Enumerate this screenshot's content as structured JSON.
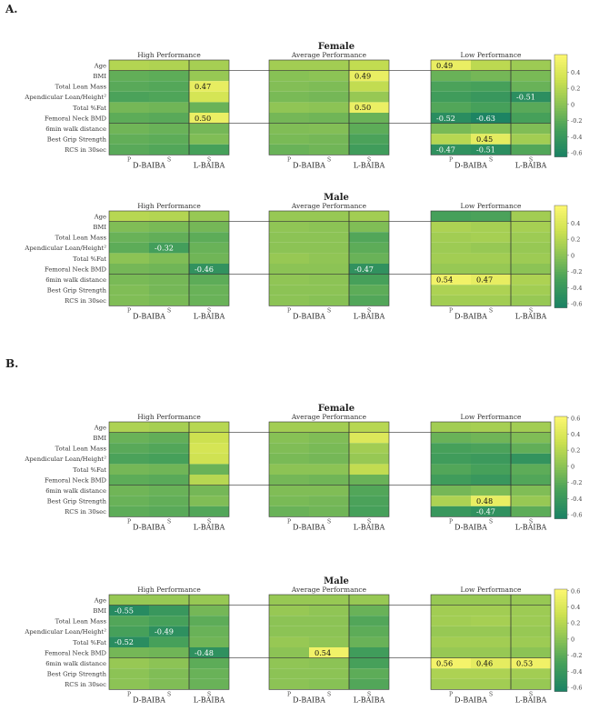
{
  "chart_data": {
    "type": "heatmap",
    "section_labels": [
      "A.",
      "B."
    ],
    "group_labels": [
      "High Performance",
      "Average Performance",
      "Low Performance"
    ],
    "row_labels": [
      "Age",
      "BMI",
      "Total Lean Mass",
      "Apendicular Lean/Height²",
      "Total %Fat",
      "Femoral Neck BMD",
      "6min walk distance",
      "Best Grip Strength",
      "RCS in 30sec"
    ],
    "column_labels": [
      "P",
      "S",
      "S",
      "P",
      "S",
      "S",
      "P",
      "S",
      "S"
    ],
    "column_group_labels": [
      "D-BAIBA",
      "L-BAIBA",
      "D-BAIBA",
      "L-BAIBA",
      "D-BAIBA",
      "L-BAIBA"
    ],
    "colorbar": {
      "min": -0.6,
      "max": 0.6,
      "ticks": [
        "0.4",
        "0.2",
        "0",
        "-0.2",
        "-0.4",
        "-0.6"
      ]
    },
    "panels": [
      {
        "section": "A.",
        "title": "Female",
        "colorbar_ticks": [
          "0.4",
          "0.2",
          "0",
          "-0.2",
          "-0.4",
          "-0.6"
        ],
        "values": [
          [
            0.18,
            0.16,
            0.12,
            0.1,
            0.1,
            0.25,
            0.49,
            0.22,
            0.08
          ],
          [
            -0.18,
            -0.2,
            0.05,
            -0.02,
            0.0,
            0.49,
            -0.15,
            -0.1,
            -0.08
          ],
          [
            -0.22,
            -0.24,
            0.47,
            -0.04,
            -0.06,
            0.25,
            -0.28,
            -0.3,
            -0.15
          ],
          [
            -0.28,
            -0.26,
            0.35,
            -0.08,
            -0.1,
            0.05,
            -0.35,
            -0.4,
            -0.51
          ],
          [
            -0.1,
            -0.12,
            -0.15,
            0.02,
            0.0,
            0.5,
            -0.25,
            -0.3,
            -0.22
          ],
          [
            -0.2,
            -0.22,
            0.5,
            -0.1,
            -0.12,
            -0.15,
            -0.52,
            -0.63,
            -0.3
          ],
          [
            -0.12,
            -0.15,
            -0.1,
            -0.05,
            -0.04,
            -0.2,
            -0.08,
            -0.02,
            -0.05
          ],
          [
            -0.18,
            -0.2,
            -0.05,
            -0.08,
            -0.1,
            -0.28,
            0.2,
            0.45,
            0.1
          ],
          [
            -0.22,
            -0.25,
            -0.3,
            -0.15,
            -0.12,
            -0.35,
            -0.47,
            -0.51,
            -0.25
          ]
        ],
        "labels": [
          [
            null,
            null,
            null,
            null,
            null,
            null,
            "0.49",
            null,
            null
          ],
          [
            null,
            null,
            null,
            null,
            null,
            "0.49",
            null,
            null,
            null
          ],
          [
            null,
            null,
            "0.47",
            null,
            null,
            null,
            null,
            null,
            null
          ],
          [
            null,
            null,
            null,
            null,
            null,
            null,
            null,
            null,
            "-0.51"
          ],
          [
            null,
            null,
            null,
            null,
            null,
            "0.50",
            null,
            null,
            null
          ],
          [
            null,
            null,
            "0.50",
            null,
            null,
            null,
            "-0.52",
            "-0.63",
            null
          ],
          [
            null,
            null,
            null,
            null,
            null,
            null,
            null,
            null,
            null
          ],
          [
            null,
            null,
            null,
            null,
            null,
            null,
            null,
            "0.45",
            null
          ],
          [
            null,
            null,
            null,
            null,
            null,
            null,
            "-0.47",
            "-0.51",
            null
          ]
        ]
      },
      {
        "section": "A.",
        "title": "Male",
        "colorbar_ticks": [
          "0.4",
          "0.2",
          "0",
          "-0.2",
          "-0.4",
          "-0.6"
        ],
        "values": [
          [
            0.2,
            0.18,
            0.05,
            0.05,
            0.05,
            0.1,
            -0.3,
            -0.28,
            0.1
          ],
          [
            -0.05,
            -0.08,
            -0.1,
            0.02,
            0.0,
            -0.05,
            0.15,
            0.12,
            0.12
          ],
          [
            -0.15,
            -0.18,
            -0.2,
            0.0,
            0.0,
            -0.25,
            0.1,
            0.12,
            0.08
          ],
          [
            -0.2,
            -0.32,
            -0.15,
            0.0,
            0.0,
            -0.2,
            0.08,
            0.05,
            0.05
          ],
          [
            0.0,
            -0.05,
            -0.12,
            0.05,
            0.02,
            -0.15,
            0.1,
            0.1,
            0.08
          ],
          [
            -0.1,
            -0.12,
            -0.46,
            0.0,
            0.0,
            -0.47,
            0.05,
            0.05,
            0.0
          ],
          [
            -0.08,
            -0.1,
            -0.2,
            0.02,
            0.0,
            -0.3,
            0.54,
            0.47,
            0.15
          ],
          [
            -0.05,
            -0.1,
            -0.15,
            0.0,
            0.0,
            -0.2,
            0.15,
            0.15,
            0.1
          ],
          [
            -0.05,
            -0.08,
            -0.15,
            0.0,
            -0.02,
            -0.25,
            0.1,
            0.1,
            0.05
          ]
        ],
        "labels": [
          [
            null,
            null,
            null,
            null,
            null,
            null,
            null,
            null,
            null
          ],
          [
            null,
            null,
            null,
            null,
            null,
            null,
            null,
            null,
            null
          ],
          [
            null,
            null,
            null,
            null,
            null,
            null,
            null,
            null,
            null
          ],
          [
            null,
            "-0.32",
            null,
            null,
            null,
            null,
            null,
            null,
            null
          ],
          [
            null,
            null,
            null,
            null,
            null,
            null,
            null,
            null,
            null
          ],
          [
            null,
            null,
            "-0.46",
            null,
            null,
            "-0.47",
            null,
            null,
            null
          ],
          [
            null,
            null,
            null,
            null,
            null,
            null,
            "0.54",
            "0.47",
            null
          ],
          [
            null,
            null,
            null,
            null,
            null,
            null,
            null,
            null,
            null
          ],
          [
            null,
            null,
            null,
            null,
            null,
            null,
            null,
            null,
            null
          ]
        ]
      },
      {
        "section": "B.",
        "title": "Female",
        "colorbar_ticks": [
          "0.6",
          "0.4",
          "0.2",
          "0",
          "-0.2",
          "-0.4",
          "-0.6"
        ],
        "values": [
          [
            0.15,
            0.12,
            0.2,
            0.1,
            0.1,
            0.2,
            0.1,
            0.12,
            0.1
          ],
          [
            -0.15,
            -0.18,
            0.3,
            -0.02,
            -0.05,
            0.4,
            -0.15,
            -0.12,
            -0.05
          ],
          [
            -0.22,
            -0.25,
            0.35,
            -0.05,
            -0.08,
            0.1,
            -0.3,
            -0.28,
            -0.18
          ],
          [
            -0.28,
            -0.3,
            0.32,
            -0.08,
            -0.1,
            0.05,
            -0.35,
            -0.38,
            -0.45
          ],
          [
            -0.1,
            -0.12,
            -0.15,
            0.0,
            0.0,
            0.25,
            -0.25,
            -0.3,
            -0.2
          ],
          [
            -0.2,
            -0.22,
            0.2,
            -0.1,
            -0.12,
            -0.15,
            -0.35,
            -0.4,
            -0.25
          ],
          [
            -0.12,
            -0.15,
            -0.1,
            -0.05,
            -0.05,
            -0.25,
            -0.1,
            -0.05,
            -0.05
          ],
          [
            -0.15,
            -0.18,
            -0.05,
            -0.08,
            -0.1,
            -0.28,
            0.15,
            0.48,
            0.05
          ],
          [
            -0.2,
            -0.22,
            -0.25,
            -0.15,
            -0.12,
            -0.3,
            -0.4,
            -0.47,
            -0.2
          ]
        ],
        "labels": [
          [
            null,
            null,
            null,
            null,
            null,
            null,
            null,
            null,
            null
          ],
          [
            null,
            null,
            null,
            null,
            null,
            null,
            null,
            null,
            null
          ],
          [
            null,
            null,
            null,
            null,
            null,
            null,
            null,
            null,
            null
          ],
          [
            null,
            null,
            null,
            null,
            null,
            null,
            null,
            null,
            null
          ],
          [
            null,
            null,
            null,
            null,
            null,
            null,
            null,
            null,
            null
          ],
          [
            null,
            null,
            null,
            null,
            null,
            null,
            null,
            null,
            null
          ],
          [
            null,
            null,
            null,
            null,
            null,
            null,
            null,
            null,
            null
          ],
          [
            null,
            null,
            null,
            null,
            null,
            null,
            null,
            "0.48",
            null
          ],
          [
            null,
            null,
            null,
            null,
            null,
            null,
            null,
            "-0.47",
            null
          ]
        ]
      },
      {
        "section": "B.",
        "title": "Male",
        "colorbar_ticks": [
          "0.6",
          "0.4",
          "0.2",
          "0",
          "-0.2",
          "-0.4",
          "-0.6"
        ],
        "values": [
          [
            0.05,
            0.05,
            0.05,
            0.05,
            0.05,
            0.05,
            0.05,
            0.05,
            0.05
          ],
          [
            -0.55,
            -0.4,
            -0.1,
            0.05,
            0.02,
            -0.15,
            0.1,
            0.1,
            0.08
          ],
          [
            -0.25,
            -0.3,
            -0.2,
            0.0,
            0.0,
            -0.25,
            0.1,
            0.12,
            0.08
          ],
          [
            -0.3,
            -0.49,
            -0.15,
            0.0,
            0.0,
            -0.2,
            0.05,
            0.05,
            0.05
          ],
          [
            -0.52,
            -0.3,
            -0.12,
            0.05,
            0.02,
            -0.15,
            0.1,
            0.1,
            0.08
          ],
          [
            -0.1,
            -0.12,
            -0.48,
            0.0,
            0.54,
            -0.35,
            0.05,
            0.05,
            0.0
          ],
          [
            0.05,
            0.0,
            -0.2,
            0.02,
            0.0,
            -0.3,
            0.56,
            0.46,
            0.53
          ],
          [
            0.0,
            -0.05,
            -0.15,
            0.0,
            0.0,
            -0.2,
            0.15,
            0.15,
            0.1
          ],
          [
            0.0,
            -0.05,
            -0.15,
            0.0,
            -0.02,
            -0.25,
            0.1,
            0.1,
            0.05
          ]
        ],
        "labels": [
          [
            null,
            null,
            null,
            null,
            null,
            null,
            null,
            null,
            null
          ],
          [
            "-0.55",
            null,
            null,
            null,
            null,
            null,
            null,
            null,
            null
          ],
          [
            null,
            null,
            null,
            null,
            null,
            null,
            null,
            null,
            null
          ],
          [
            null,
            "-0.49",
            null,
            null,
            null,
            null,
            null,
            null,
            null
          ],
          [
            "-0.52",
            null,
            null,
            null,
            null,
            null,
            null,
            null,
            null
          ],
          [
            null,
            null,
            "-0.48",
            null,
            "0.54",
            null,
            null,
            null,
            null
          ],
          [
            null,
            null,
            null,
            null,
            null,
            null,
            "0.56",
            "0.46",
            "0.53"
          ],
          [
            null,
            null,
            null,
            null,
            null,
            null,
            null,
            null,
            null
          ],
          [
            null,
            null,
            null,
            null,
            null,
            null,
            null,
            null,
            null
          ]
        ]
      }
    ]
  }
}
